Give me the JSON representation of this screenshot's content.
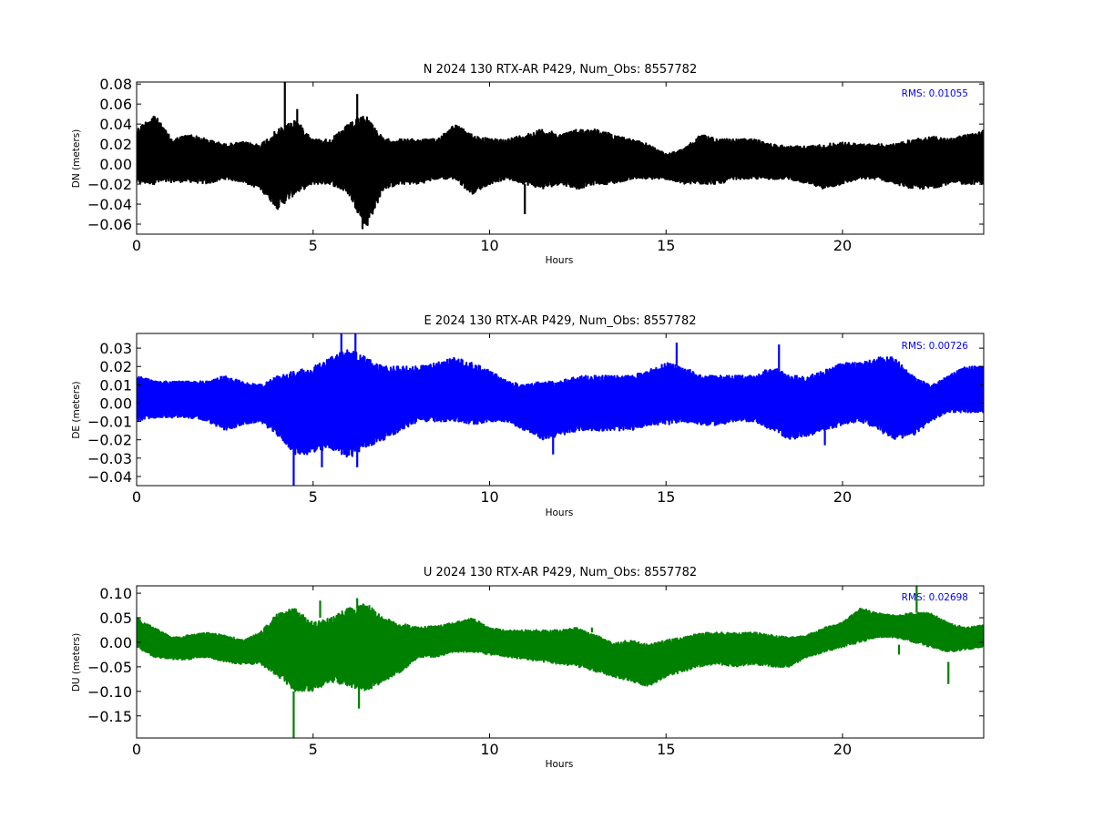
{
  "chart_data": [
    {
      "type": "line",
      "component": "N",
      "title": "N 2024 130 RTX-AR  P429, Num_Obs: 8557782",
      "xlabel": "Hours",
      "ylabel": "DN (meters)",
      "xlim": [
        0,
        24
      ],
      "ylim": [
        -0.07,
        0.082
      ],
      "xticks": [
        0,
        5,
        10,
        15,
        20
      ],
      "xtick_labels": [
        "0",
        "5",
        "10",
        "15",
        "20"
      ],
      "yticks": [
        -0.06,
        -0.04,
        -0.02,
        0.0,
        0.02,
        0.04,
        0.06,
        0.08
      ],
      "ytick_labels": [
        "−0.06",
        "−0.04",
        "−0.02",
        "0.00",
        "0.02",
        "0.04",
        "0.06",
        "0.08"
      ],
      "color": "#000000",
      "rms_label": "RMS:  0.01055",
      "rms_color": "#0000ff",
      "x": [
        0,
        0.5,
        1,
        1.5,
        2,
        2.5,
        3,
        3.5,
        4,
        4.5,
        5,
        5.5,
        6,
        6.5,
        7,
        7.5,
        8,
        8.5,
        9,
        9.5,
        10,
        10.5,
        11,
        11.5,
        12,
        12.5,
        13,
        13.5,
        14,
        14.5,
        15,
        15.5,
        16,
        16.5,
        17,
        17.5,
        18,
        18.5,
        19,
        19.5,
        20,
        20.5,
        21,
        21.5,
        22,
        22.5,
        23,
        23.5,
        24
      ],
      "upper": [
        0.035,
        0.05,
        0.025,
        0.03,
        0.025,
        0.02,
        0.022,
        0.02,
        0.035,
        0.045,
        0.025,
        0.025,
        0.04,
        0.05,
        0.025,
        0.025,
        0.025,
        0.025,
        0.04,
        0.03,
        0.025,
        0.025,
        0.03,
        0.035,
        0.03,
        0.035,
        0.035,
        0.03,
        0.025,
        0.02,
        0.01,
        0.015,
        0.03,
        0.025,
        0.025,
        0.025,
        0.02,
        0.018,
        0.018,
        0.02,
        0.022,
        0.02,
        0.02,
        0.02,
        0.025,
        0.028,
        0.025,
        0.03,
        0.035
      ],
      "lower": [
        -0.02,
        -0.02,
        -0.018,
        -0.018,
        -0.02,
        -0.015,
        -0.018,
        -0.025,
        -0.045,
        -0.03,
        -0.02,
        -0.02,
        -0.03,
        -0.065,
        -0.025,
        -0.02,
        -0.02,
        -0.015,
        -0.015,
        -0.03,
        -0.02,
        -0.015,
        -0.02,
        -0.025,
        -0.02,
        -0.025,
        -0.02,
        -0.02,
        -0.015,
        -0.015,
        -0.015,
        -0.02,
        -0.02,
        -0.02,
        -0.015,
        -0.015,
        -0.015,
        -0.015,
        -0.02,
        -0.025,
        -0.02,
        -0.015,
        -0.015,
        -0.02,
        -0.025,
        -0.025,
        -0.02,
        -0.02,
        -0.02
      ],
      "spikes": [
        {
          "x": 4.2,
          "y0": 0.02,
          "y1": 0.082
        },
        {
          "x": 4.55,
          "y0": 0.02,
          "y1": 0.055
        },
        {
          "x": 6.25,
          "y0": 0.02,
          "y1": 0.07
        },
        {
          "x": 11.0,
          "y0": -0.02,
          "y1": -0.05
        },
        {
          "x": 6.4,
          "y0": -0.03,
          "y1": -0.065
        }
      ]
    },
    {
      "type": "line",
      "component": "E",
      "title": "E 2024 130 RTX-AR  P429, Num_Obs: 8557782",
      "xlabel": "Hours",
      "ylabel": "DE (meters)",
      "xlim": [
        0,
        24
      ],
      "ylim": [
        -0.045,
        0.038
      ],
      "xticks": [
        0,
        5,
        10,
        15,
        20
      ],
      "xtick_labels": [
        "0",
        "5",
        "10",
        "15",
        "20"
      ],
      "yticks": [
        -0.04,
        -0.03,
        -0.02,
        -0.01,
        0.0,
        0.01,
        0.02,
        0.03
      ],
      "ytick_labels": [
        "−0.04",
        "−0.03",
        "−0.02",
        "−0.01",
        "0.00",
        "0.01",
        "0.02",
        "0.03"
      ],
      "color": "#0000ff",
      "rms_label": "RMS:  0.00726",
      "rms_color": "#0000ff",
      "x": [
        0,
        0.5,
        1,
        1.5,
        2,
        2.5,
        3,
        3.5,
        4,
        4.5,
        5,
        5.5,
        6,
        6.5,
        7,
        7.5,
        8,
        8.5,
        9,
        9.5,
        10,
        10.5,
        11,
        11.5,
        12,
        12.5,
        13,
        13.5,
        14,
        14.5,
        15,
        15.5,
        16,
        16.5,
        17,
        17.5,
        18,
        18.5,
        19,
        19.5,
        20,
        20.5,
        21,
        21.5,
        22,
        22.5,
        23,
        23.5,
        24
      ],
      "upper": [
        0.015,
        0.012,
        0.012,
        0.012,
        0.012,
        0.015,
        0.012,
        0.01,
        0.015,
        0.018,
        0.02,
        0.025,
        0.03,
        0.025,
        0.02,
        0.02,
        0.02,
        0.022,
        0.025,
        0.022,
        0.018,
        0.012,
        0.01,
        0.012,
        0.012,
        0.015,
        0.015,
        0.015,
        0.015,
        0.018,
        0.022,
        0.02,
        0.015,
        0.015,
        0.015,
        0.015,
        0.02,
        0.015,
        0.015,
        0.018,
        0.022,
        0.022,
        0.025,
        0.025,
        0.015,
        0.01,
        0.015,
        0.02,
        0.02
      ],
      "lower": [
        -0.01,
        -0.008,
        -0.008,
        -0.008,
        -0.01,
        -0.015,
        -0.012,
        -0.01,
        -0.018,
        -0.028,
        -0.028,
        -0.025,
        -0.03,
        -0.025,
        -0.02,
        -0.015,
        -0.01,
        -0.01,
        -0.01,
        -0.012,
        -0.01,
        -0.01,
        -0.015,
        -0.02,
        -0.018,
        -0.015,
        -0.015,
        -0.015,
        -0.015,
        -0.012,
        -0.012,
        -0.01,
        -0.012,
        -0.012,
        -0.01,
        -0.01,
        -0.015,
        -0.02,
        -0.018,
        -0.015,
        -0.012,
        -0.01,
        -0.015,
        -0.02,
        -0.018,
        -0.01,
        -0.005,
        -0.005,
        -0.005
      ],
      "spikes": [
        {
          "x": 4.45,
          "y0": -0.025,
          "y1": -0.045
        },
        {
          "x": 5.8,
          "y0": 0.02,
          "y1": 0.038
        },
        {
          "x": 6.2,
          "y0": 0.02,
          "y1": 0.038
        },
        {
          "x": 5.25,
          "y0": -0.02,
          "y1": -0.035
        },
        {
          "x": 6.25,
          "y0": -0.02,
          "y1": -0.035
        },
        {
          "x": 15.3,
          "y0": 0.02,
          "y1": 0.033
        },
        {
          "x": 18.2,
          "y0": 0.015,
          "y1": 0.032
        },
        {
          "x": 19.5,
          "y0": -0.015,
          "y1": -0.023
        },
        {
          "x": 11.8,
          "y0": -0.015,
          "y1": -0.028
        }
      ]
    },
    {
      "type": "line",
      "component": "U",
      "title": "U 2024 130 RTX-AR  P429, Num_Obs: 8557782",
      "xlabel": "Hours",
      "ylabel": "DU (meters)",
      "xlim": [
        0,
        24
      ],
      "ylim": [
        -0.195,
        0.115
      ],
      "xticks": [
        0,
        5,
        10,
        15,
        20
      ],
      "xtick_labels": [
        "0",
        "5",
        "10",
        "15",
        "20"
      ],
      "yticks": [
        -0.15,
        -0.1,
        -0.05,
        0.0,
        0.05,
        0.1
      ],
      "ytick_labels": [
        "−0.15",
        "−0.10",
        "−0.05",
        "0.00",
        "0.05",
        "0.10"
      ],
      "color": "#008000",
      "rms_label": "RMS:  0.02698",
      "rms_color": "#0000ff",
      "x": [
        0,
        0.5,
        1,
        1.5,
        2,
        2.5,
        3,
        3.5,
        4,
        4.5,
        5,
        5.5,
        6,
        6.5,
        7,
        7.5,
        8,
        8.5,
        9,
        9.5,
        10,
        10.5,
        11,
        11.5,
        12,
        12.5,
        13,
        13.5,
        14,
        14.5,
        15,
        15.5,
        16,
        16.5,
        17,
        17.5,
        18,
        18.5,
        19,
        19.5,
        20,
        20.5,
        21,
        21.5,
        22,
        22.5,
        23,
        23.5,
        24
      ],
      "upper": [
        0.05,
        0.03,
        0.01,
        0.015,
        0.02,
        0.015,
        0.005,
        0.02,
        0.06,
        0.07,
        0.04,
        0.05,
        0.07,
        0.08,
        0.05,
        0.04,
        0.03,
        0.035,
        0.04,
        0.05,
        0.03,
        0.025,
        0.025,
        0.025,
        0.025,
        0.03,
        0.015,
        0.0,
        0.005,
        -0.005,
        0.005,
        0.01,
        0.02,
        0.02,
        0.02,
        0.02,
        0.015,
        0.01,
        0.015,
        0.03,
        0.04,
        0.07,
        0.06,
        0.055,
        0.06,
        0.06,
        0.04,
        0.03,
        0.035
      ],
      "lower": [
        -0.01,
        -0.03,
        -0.035,
        -0.035,
        -0.03,
        -0.04,
        -0.045,
        -0.045,
        -0.07,
        -0.1,
        -0.1,
        -0.08,
        -0.09,
        -0.1,
        -0.08,
        -0.06,
        -0.03,
        -0.03,
        -0.02,
        -0.02,
        -0.025,
        -0.03,
        -0.035,
        -0.04,
        -0.045,
        -0.05,
        -0.06,
        -0.07,
        -0.08,
        -0.09,
        -0.07,
        -0.06,
        -0.05,
        -0.045,
        -0.05,
        -0.045,
        -0.05,
        -0.05,
        -0.03,
        -0.02,
        -0.01,
        0.0,
        0.01,
        0.01,
        0.0,
        -0.01,
        -0.02,
        -0.015,
        -0.01
      ],
      "spikes": [
        {
          "x": 4.45,
          "y0": -0.1,
          "y1": -0.195
        },
        {
          "x": 5.2,
          "y0": 0.05,
          "y1": 0.085
        },
        {
          "x": 6.25,
          "y0": 0.07,
          "y1": 0.09
        },
        {
          "x": 6.3,
          "y0": -0.09,
          "y1": -0.135
        },
        {
          "x": 12.9,
          "y0": 0.02,
          "y1": 0.03
        },
        {
          "x": 22.1,
          "y0": 0.06,
          "y1": 0.115
        },
        {
          "x": 23.0,
          "y0": -0.04,
          "y1": -0.085
        },
        {
          "x": 21.6,
          "y0": -0.005,
          "y1": -0.025
        }
      ]
    }
  ]
}
